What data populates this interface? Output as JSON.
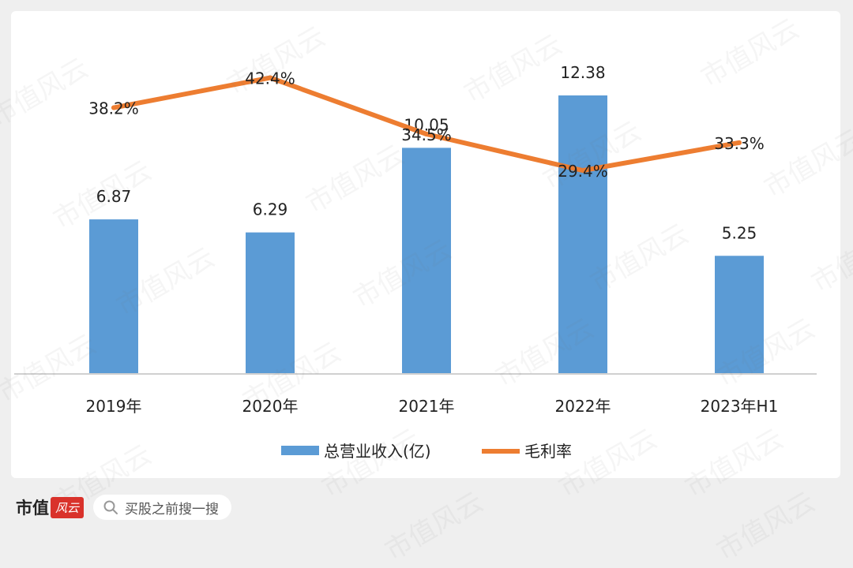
{
  "brand": {
    "name": "市值",
    "seal": "风云",
    "watermark": "市值风云"
  },
  "search": {
    "placeholder": "买股之前搜一搜",
    "icon": "search-icon"
  },
  "chart_data": {
    "type": "bar+line",
    "categories": [
      "2019年",
      "2020年",
      "2021年",
      "2022年",
      "2023年H1"
    ],
    "series": [
      {
        "name": "总营业收入(亿)",
        "type": "bar",
        "values": [
          6.87,
          6.29,
          10.05,
          12.38,
          5.25
        ],
        "labels": [
          "6.87",
          "6.29",
          "10.05",
          "12.38",
          "5.25"
        ],
        "color": "#5b9bd5"
      },
      {
        "name": "毛利率",
        "type": "line",
        "values": [
          38.2,
          42.4,
          34.5,
          29.4,
          33.3
        ],
        "labels": [
          "38.2%",
          "42.4%",
          "34.5%",
          "29.4%",
          "33.3%"
        ],
        "color": "#ed7d31"
      }
    ],
    "bar_ylim": [
      0,
      13.5
    ],
    "line_ylim": [
      0,
      46
    ],
    "legend": "bottom",
    "grid": false
  }
}
